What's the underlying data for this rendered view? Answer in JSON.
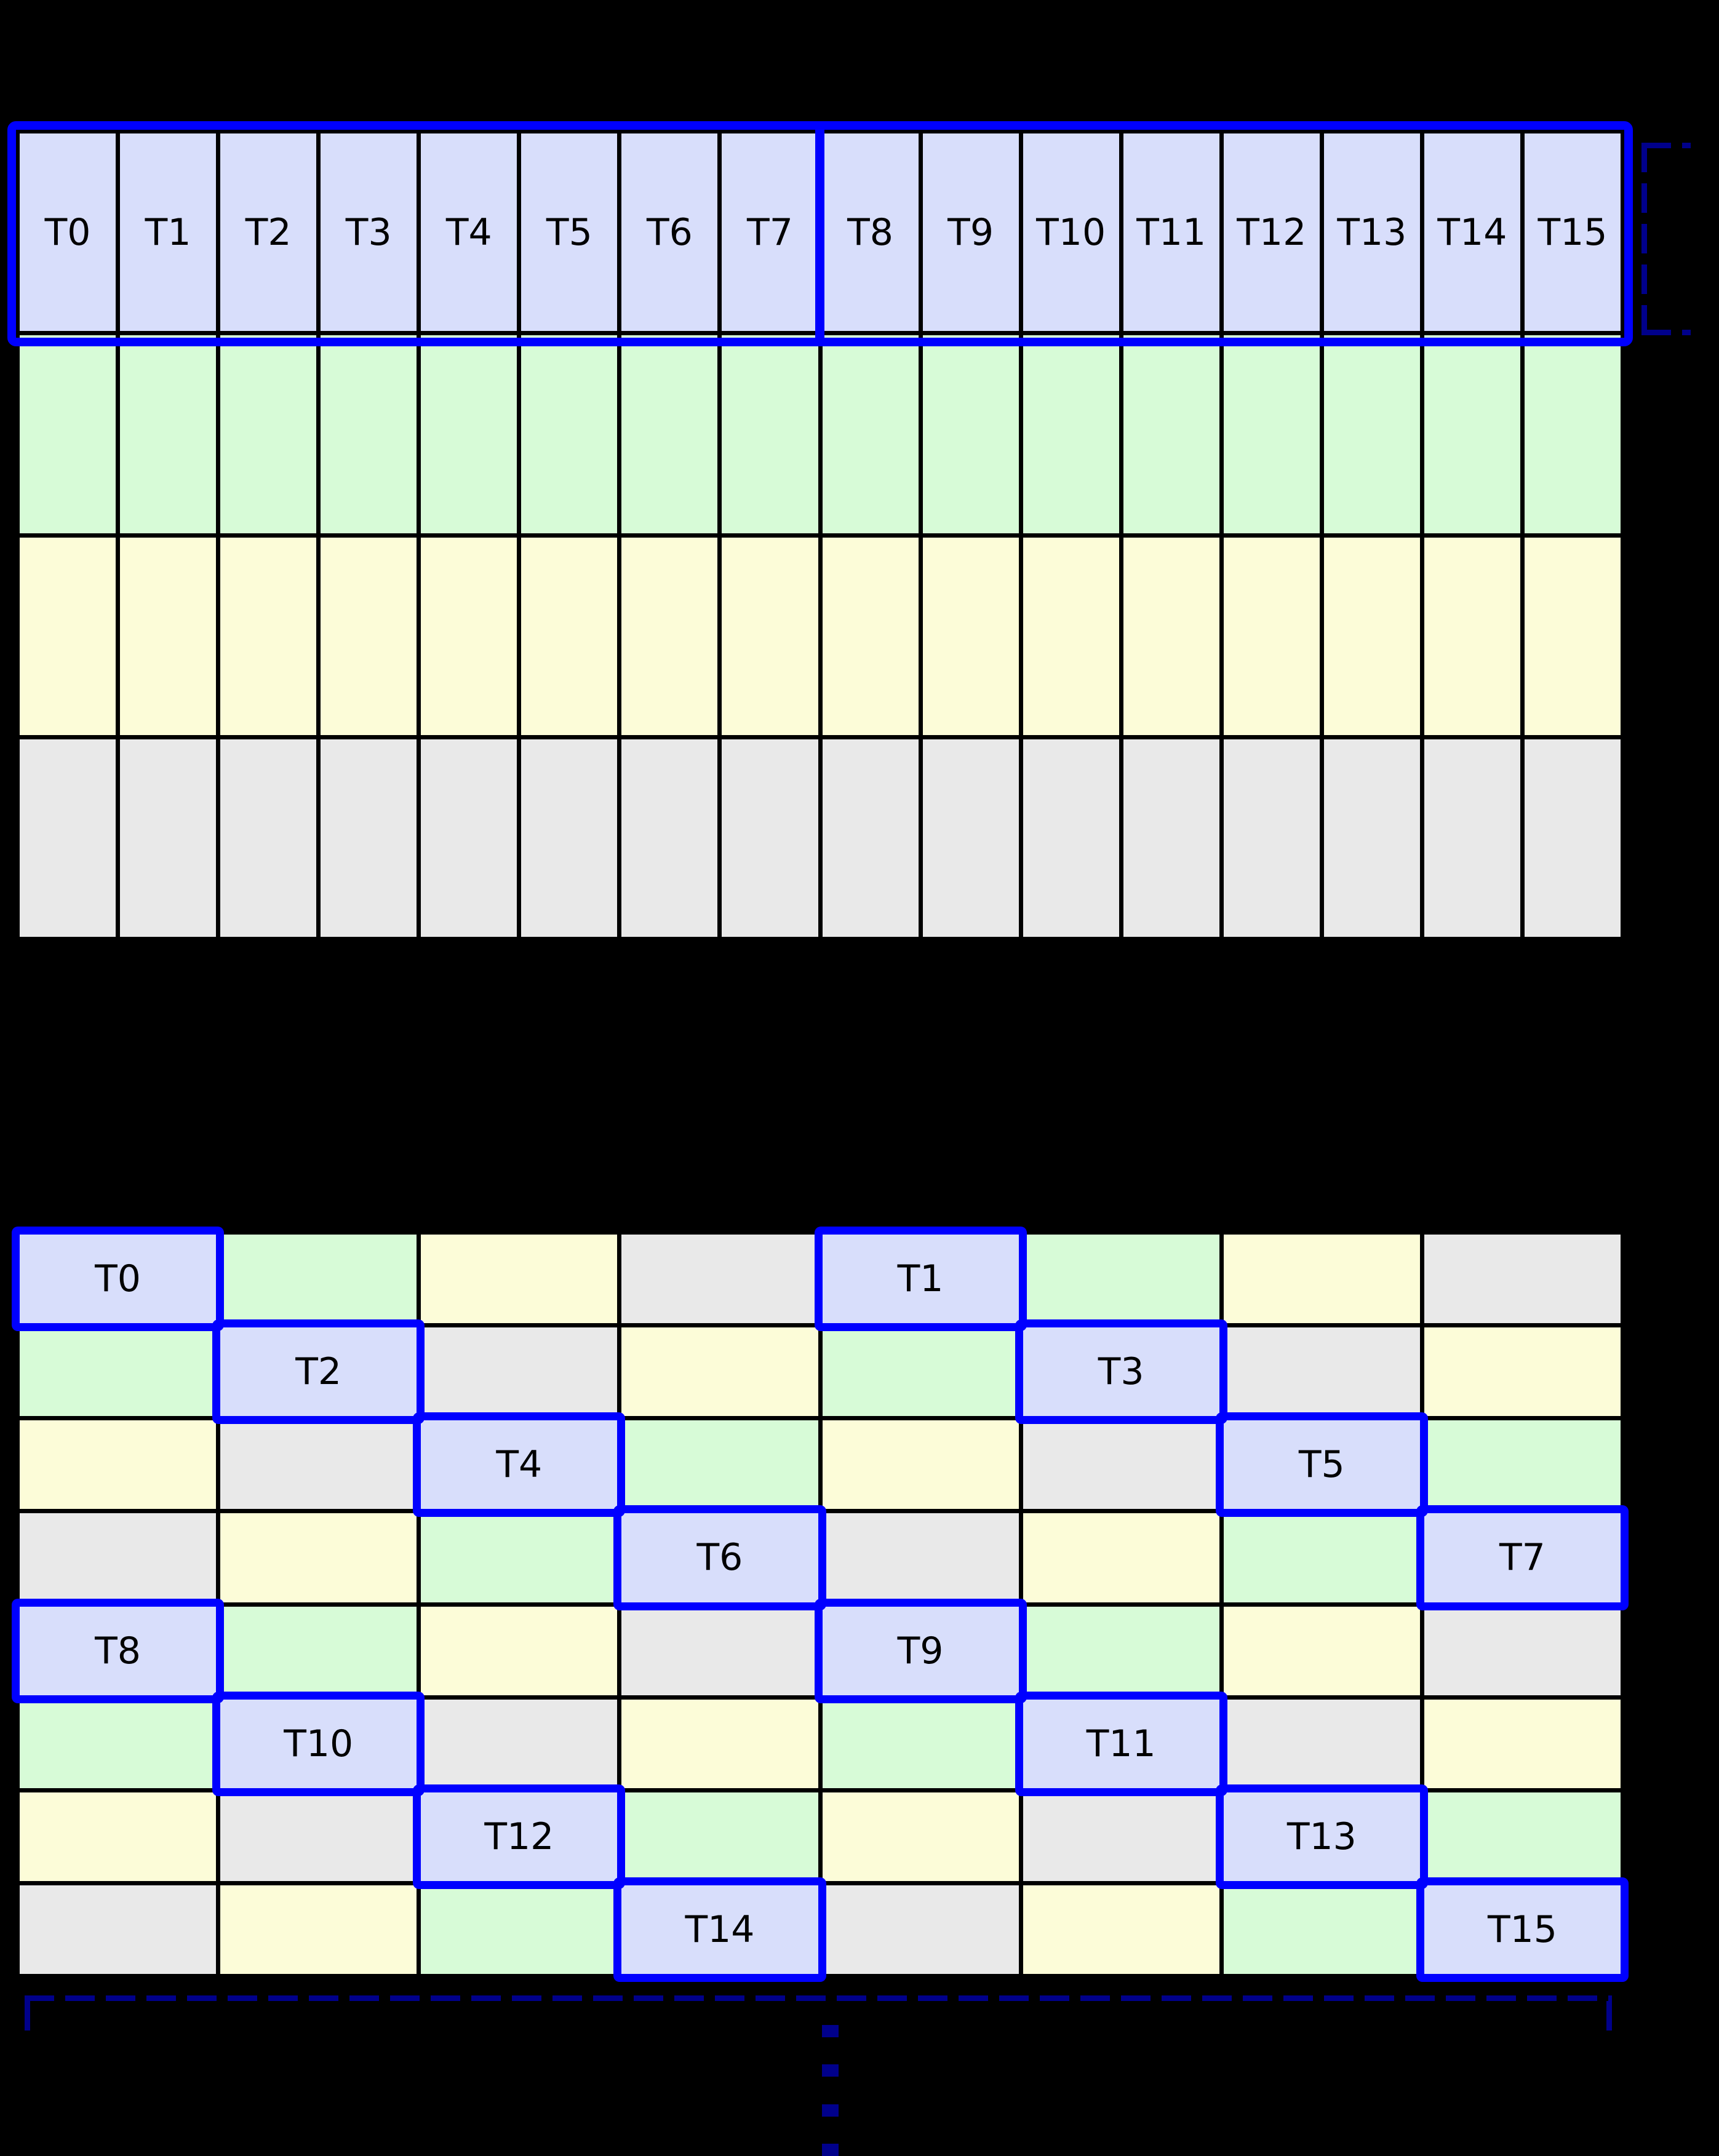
{
  "diagram": {
    "description": "thread-to-memory layout diagram: linear row layout (top) and swizzled layout (bottom)",
    "background": "#000000",
    "palette": {
      "lavender": "#d8defb",
      "green": "#d7fbd7",
      "yellow": "#fcfcd8",
      "gray": "#e9e9e9",
      "grid_line": "#000000",
      "highlight_blue": "#0000ff",
      "bracket_navy": "#00008b",
      "label_color": "#000000"
    }
  },
  "top_grid": {
    "columns": 16,
    "thread_labels": [
      "T0",
      "T1",
      "T2",
      "T3",
      "T4",
      "T5",
      "T6",
      "T7",
      "T8",
      "T9",
      "T10",
      "T11",
      "T12",
      "T13",
      "T14",
      "T15"
    ],
    "row_colors": [
      "lavender",
      "green",
      "yellow",
      "gray"
    ],
    "highlighted_row": 0,
    "heavy_divider_after_column": 8
  },
  "bottom_grid": {
    "columns": 8,
    "color_cycle": [
      "lavender",
      "green",
      "yellow",
      "gray"
    ],
    "rows": [
      [
        {
          "color": "lavender",
          "label": "T0"
        },
        {
          "color": "green"
        },
        {
          "color": "yellow"
        },
        {
          "color": "gray"
        },
        {
          "color": "lavender",
          "label": "T1"
        },
        {
          "color": "green"
        },
        {
          "color": "yellow"
        },
        {
          "color": "gray"
        }
      ],
      [
        {
          "color": "green"
        },
        {
          "color": "lavender",
          "label": "T2"
        },
        {
          "color": "gray"
        },
        {
          "color": "yellow"
        },
        {
          "color": "green"
        },
        {
          "color": "lavender",
          "label": "T3"
        },
        {
          "color": "gray"
        },
        {
          "color": "yellow"
        }
      ],
      [
        {
          "color": "yellow"
        },
        {
          "color": "gray"
        },
        {
          "color": "lavender",
          "label": "T4"
        },
        {
          "color": "green"
        },
        {
          "color": "yellow"
        },
        {
          "color": "gray"
        },
        {
          "color": "lavender",
          "label": "T5"
        },
        {
          "color": "green"
        }
      ],
      [
        {
          "color": "gray"
        },
        {
          "color": "yellow"
        },
        {
          "color": "green"
        },
        {
          "color": "lavender",
          "label": "T6"
        },
        {
          "color": "gray"
        },
        {
          "color": "yellow"
        },
        {
          "color": "green"
        },
        {
          "color": "lavender",
          "label": "T7"
        }
      ],
      [
        {
          "color": "lavender",
          "label": "T8"
        },
        {
          "color": "green"
        },
        {
          "color": "yellow"
        },
        {
          "color": "gray"
        },
        {
          "color": "lavender",
          "label": "T9"
        },
        {
          "color": "green"
        },
        {
          "color": "yellow"
        },
        {
          "color": "gray"
        }
      ],
      [
        {
          "color": "green"
        },
        {
          "color": "lavender",
          "label": "T10"
        },
        {
          "color": "gray"
        },
        {
          "color": "yellow"
        },
        {
          "color": "green"
        },
        {
          "color": "lavender",
          "label": "T11"
        },
        {
          "color": "gray"
        },
        {
          "color": "yellow"
        }
      ],
      [
        {
          "color": "yellow"
        },
        {
          "color": "gray"
        },
        {
          "color": "lavender",
          "label": "T12"
        },
        {
          "color": "green"
        },
        {
          "color": "yellow"
        },
        {
          "color": "gray"
        },
        {
          "color": "lavender",
          "label": "T13"
        },
        {
          "color": "green"
        }
      ],
      [
        {
          "color": "gray"
        },
        {
          "color": "yellow"
        },
        {
          "color": "green"
        },
        {
          "color": "lavender",
          "label": "T14"
        },
        {
          "color": "gray"
        },
        {
          "color": "yellow"
        },
        {
          "color": "green"
        },
        {
          "color": "lavender",
          "label": "T15"
        }
      ]
    ]
  },
  "annotations": {
    "right_row_bracket_style": "dashed",
    "bottom_width_bracket_style": "dashed",
    "ellipsis_dots": 4
  }
}
